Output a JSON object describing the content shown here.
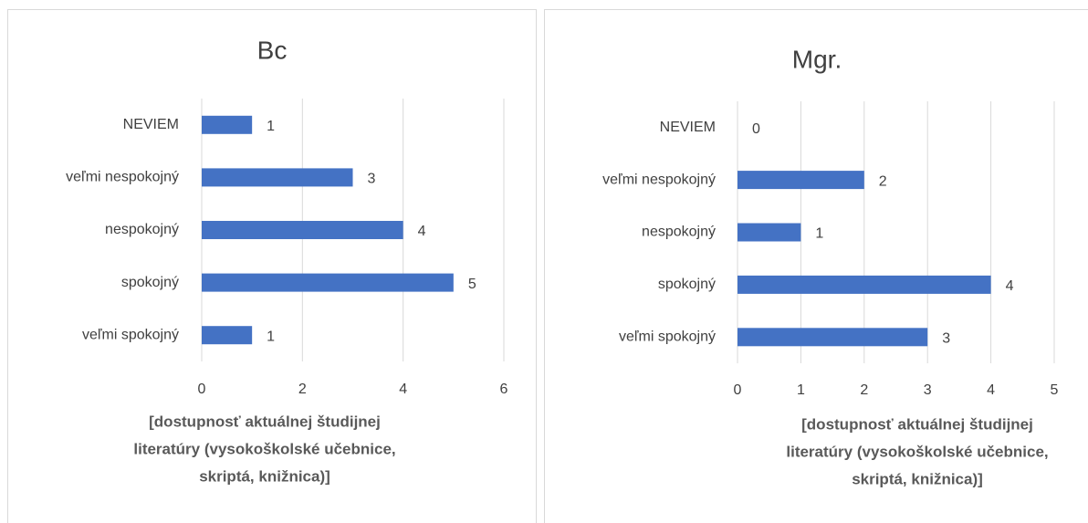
{
  "chart_data": [
    {
      "type": "bar",
      "orientation": "horizontal",
      "title": "Bc",
      "categories": [
        "NEVIEM",
        "veľmi nespokojný",
        "nespokojný",
        "spokojný",
        "veľmi spokojný"
      ],
      "values": [
        1,
        3,
        4,
        5,
        1
      ],
      "color": "#4472c4",
      "xlim": [
        0,
        6
      ],
      "xticks": [
        0,
        2,
        4,
        6
      ],
      "grid": true,
      "xlabel": [
        "[dostupnosť aktuálnej študijnej",
        "literatúry (vysokoškolské učebnice,",
        "skriptá, knižnica)]"
      ]
    },
    {
      "type": "bar",
      "orientation": "horizontal",
      "title": "Mgr.",
      "categories": [
        "NEVIEM",
        "veľmi nespokojný",
        "nespokojný",
        "spokojný",
        "veľmi spokojný"
      ],
      "values": [
        0,
        2,
        1,
        4,
        3
      ],
      "color": "#4472c4",
      "xlim": [
        0,
        5
      ],
      "xticks": [
        0,
        1,
        2,
        3,
        4,
        5
      ],
      "grid": true,
      "xlabel": [
        "[dostupnosť aktuálnej študijnej",
        "literatúry (vysokoškolské učebnice,",
        "skriptá, knižnica)]"
      ]
    }
  ]
}
